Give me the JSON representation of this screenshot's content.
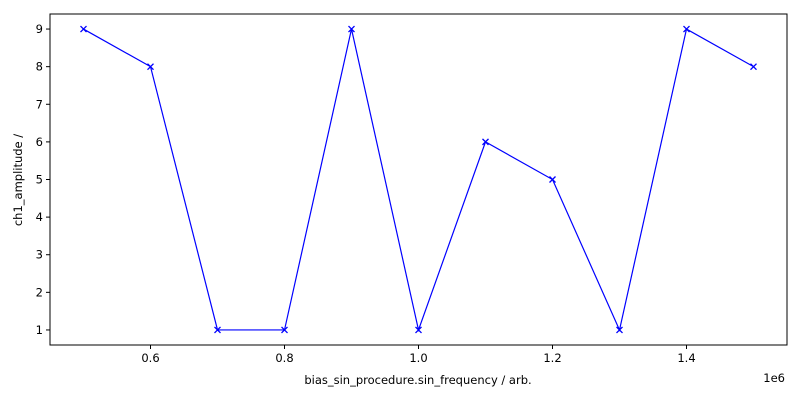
{
  "chart_data": {
    "type": "line",
    "title": "",
    "xlabel": "bias_sin_procedure.sin_frequency / arb.",
    "ylabel": "ch1_amplitude /",
    "x_offset_label": "1e6",
    "xlim": [
      0.45,
      1.55
    ],
    "ylim": [
      0.6,
      9.4
    ],
    "xticks": [
      0.6,
      0.8,
      1.0,
      1.2,
      1.4
    ],
    "xtick_labels": [
      "0.6",
      "0.8",
      "1.0",
      "1.2",
      "1.4"
    ],
    "yticks": [
      1,
      2,
      3,
      4,
      5,
      6,
      7,
      8,
      9
    ],
    "ytick_labels": [
      "1",
      "2",
      "3",
      "4",
      "5",
      "6",
      "7",
      "8",
      "9"
    ],
    "grid": false,
    "series": [
      {
        "name": "ch1_amplitude",
        "color": "#0000ff",
        "marker": "x",
        "x": [
          0.5,
          0.6,
          0.7,
          0.8,
          0.9,
          1.0,
          1.1,
          1.2,
          1.3,
          1.4,
          1.5
        ],
        "y": [
          9,
          8,
          1,
          1,
          9,
          1,
          6,
          5,
          1,
          9,
          8
        ]
      }
    ]
  }
}
